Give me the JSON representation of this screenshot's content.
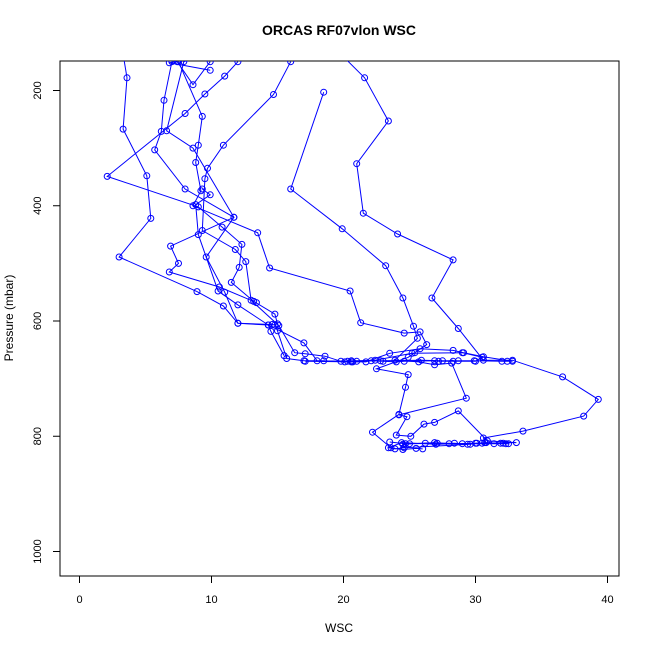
{
  "chart_data": {
    "type": "line",
    "title": "ORCAS RF07vlon WSC",
    "xlabel": "WSC",
    "ylabel": "Pressure (mbar)",
    "xlim": [
      0,
      40
    ],
    "ylim": [
      1040,
      150
    ],
    "y_axis_reversed": true,
    "xticks": [
      0,
      10,
      20,
      30,
      40
    ],
    "yticks": [
      200,
      400,
      600,
      800,
      1000
    ],
    "grid": false,
    "color": "#0000ff",
    "marker": "open-circle",
    "series": [
      {
        "points": [
          [
            3.0,
            95
          ],
          [
            3.6,
            178
          ],
          [
            3.3,
            267
          ],
          [
            5.1,
            348
          ],
          [
            5.4,
            422
          ],
          [
            3.0,
            489
          ],
          [
            8.9,
            549
          ],
          [
            10.9,
            574
          ],
          [
            12.0,
            604
          ],
          [
            14.6,
            606
          ],
          [
            14.8,
            607
          ],
          [
            15.0,
            617
          ],
          [
            15.7,
            665
          ],
          [
            17.0,
            669
          ],
          [
            18.5,
            669
          ],
          [
            20.1,
            671
          ],
          [
            20.6,
            671
          ],
          [
            21.0,
            670
          ],
          [
            22.1,
            669
          ],
          [
            23.0,
            670
          ],
          [
            24.0,
            671
          ],
          [
            24.6,
            670
          ],
          [
            26.9,
            669
          ],
          [
            27.2,
            670
          ],
          [
            28.3,
            670
          ],
          [
            30.0,
            670
          ],
          [
            30.5,
            663
          ],
          [
            29.0,
            655
          ],
          [
            25.2,
            656
          ],
          [
            22.4,
            668
          ],
          [
            20.3,
            670
          ],
          [
            18.0,
            669
          ],
          [
            17.0,
            638
          ],
          [
            14.3,
            607
          ],
          [
            12.0,
            572
          ],
          [
            10.5,
            548
          ],
          [
            9.0,
            450
          ],
          [
            8.8,
            398
          ],
          [
            9.9,
            381
          ],
          [
            9.3,
            371
          ]
        ]
      },
      {
        "points": [
          [
            7.0,
            150
          ],
          [
            6.4,
            217
          ],
          [
            6.2,
            271
          ],
          [
            5.7,
            303
          ],
          [
            8.0,
            371
          ],
          [
            11.7,
            420
          ],
          [
            9.6,
            489
          ],
          [
            11.0,
            550
          ],
          [
            12.0,
            604
          ],
          [
            14.3,
            607
          ],
          [
            14.5,
            618
          ],
          [
            15.5,
            660
          ]
        ]
      },
      {
        "points": [
          [
            7.5,
            150
          ],
          [
            9.3,
            245
          ],
          [
            9.0,
            295
          ],
          [
            8.8,
            325
          ],
          [
            9.2,
            374
          ],
          [
            8.6,
            400
          ],
          [
            13.5,
            447
          ],
          [
            14.4,
            508
          ],
          [
            20.5,
            548
          ],
          [
            21.3,
            603
          ],
          [
            24.6,
            621
          ],
          [
            25.8,
            619
          ],
          [
            26.3,
            641
          ],
          [
            25.4,
            655
          ],
          [
            24.9,
            663
          ],
          [
            22.5,
            683
          ],
          [
            24.9,
            693
          ],
          [
            24.7,
            715
          ],
          [
            24.2,
            762
          ],
          [
            22.2,
            793
          ],
          [
            23.6,
            820
          ],
          [
            23.9,
            822
          ],
          [
            24.6,
            820
          ],
          [
            29.6,
            814
          ],
          [
            30.1,
            812
          ],
          [
            31.9,
            812
          ],
          [
            30.7,
            811
          ],
          [
            29.4,
            814
          ],
          [
            28.4,
            812
          ],
          [
            26.2,
            812
          ],
          [
            24.7,
            813
          ],
          [
            23.5,
            810
          ]
        ]
      },
      {
        "points": [
          [
            12.0,
            150
          ],
          [
            11.0,
            175
          ],
          [
            9.5,
            206
          ],
          [
            8.0,
            240
          ],
          [
            2.1,
            349
          ],
          [
            9.0,
            402
          ],
          [
            10.8,
            437
          ],
          [
            12.3,
            467
          ],
          [
            12.1,
            507
          ],
          [
            11.5,
            533
          ],
          [
            13.2,
            566
          ],
          [
            14.8,
            588
          ],
          [
            15.0,
            605
          ]
        ]
      },
      {
        "points": [
          [
            16.0,
            150
          ],
          [
            14.7,
            207
          ],
          [
            10.9,
            295
          ],
          [
            9.7,
            335
          ],
          [
            9.5,
            353
          ],
          [
            9.3,
            443
          ],
          [
            11.8,
            476
          ],
          [
            12.6,
            497
          ],
          [
            13.0,
            564
          ],
          [
            15.1,
            608
          ],
          [
            16.3,
            655
          ],
          [
            17.1,
            657
          ],
          [
            18.6,
            661
          ],
          [
            19.8,
            670
          ],
          [
            20.6,
            669
          ],
          [
            22.8,
            669
          ],
          [
            25.9,
            668
          ],
          [
            27.5,
            669
          ],
          [
            28.7,
            669
          ],
          [
            29.9,
            669
          ],
          [
            32.0,
            670
          ],
          [
            32.4,
            670
          ],
          [
            32.8,
            670
          ],
          [
            30.6,
            662
          ],
          [
            29.1,
            655
          ],
          [
            28.3,
            651
          ],
          [
            25.8,
            648
          ],
          [
            23.5,
            656
          ],
          [
            21.7,
            671
          ],
          [
            20.7,
            671
          ],
          [
            17.1,
            670
          ]
        ]
      },
      {
        "points": [
          [
            19.5,
            130
          ],
          [
            21.6,
            178
          ],
          [
            23.4,
            253
          ],
          [
            21.0,
            327
          ],
          [
            21.5,
            413
          ],
          [
            24.1,
            449
          ],
          [
            28.3,
            494
          ],
          [
            26.7,
            560
          ],
          [
            28.7,
            613
          ],
          [
            30.6,
            668
          ],
          [
            32.8,
            668
          ],
          [
            36.6,
            697
          ],
          [
            39.3,
            736
          ],
          [
            38.2,
            765
          ],
          [
            33.6,
            791
          ],
          [
            30.6,
            803
          ],
          [
            30.8,
            811
          ],
          [
            31.4,
            813
          ],
          [
            32.5,
            813
          ],
          [
            32.1,
            812
          ],
          [
            29.0,
            813
          ],
          [
            27.1,
            812
          ],
          [
            25.0,
            813
          ],
          [
            24.5,
            814
          ],
          [
            26.9,
            811
          ],
          [
            28.0,
            813
          ],
          [
            32.3,
            813
          ],
          [
            30.5,
            812
          ]
        ]
      },
      {
        "points": [
          [
            18.5,
            203
          ],
          [
            16.0,
            371
          ],
          [
            19.9,
            440
          ],
          [
            23.2,
            504
          ],
          [
            24.5,
            560
          ],
          [
            25.3,
            609
          ],
          [
            25.6,
            630
          ],
          [
            23.9,
            668
          ],
          [
            25.7,
            671
          ],
          [
            26.9,
            676
          ],
          [
            28.2,
            673
          ],
          [
            29.3,
            734
          ],
          [
            24.2,
            763
          ],
          [
            24.8,
            766
          ],
          [
            24.0,
            798
          ],
          [
            25.1,
            800
          ],
          [
            26.1,
            779
          ],
          [
            26.9,
            776
          ],
          [
            28.7,
            756
          ],
          [
            30.9,
            808
          ],
          [
            33.1,
            811
          ],
          [
            30.0,
            812
          ],
          [
            27.0,
            814
          ],
          [
            24.4,
            811
          ],
          [
            23.4,
            820
          ],
          [
            24.5,
            823
          ],
          [
            25.5,
            821
          ],
          [
            26.0,
            822
          ]
        ]
      },
      {
        "points": [
          [
            12.8,
            120
          ],
          [
            7.9,
            150
          ],
          [
            6.6,
            270
          ],
          [
            8.6,
            300
          ],
          [
            11.7,
            420
          ],
          [
            6.9,
            470
          ],
          [
            7.5,
            500
          ],
          [
            6.8,
            515
          ],
          [
            10.6,
            541
          ],
          [
            13.4,
            568
          ]
        ]
      },
      {
        "points": [
          [
            9.9,
            150
          ],
          [
            8.6,
            190
          ],
          [
            7.4,
            150
          ],
          [
            6.8,
            152
          ],
          [
            9.9,
            165
          ]
        ]
      }
    ]
  }
}
